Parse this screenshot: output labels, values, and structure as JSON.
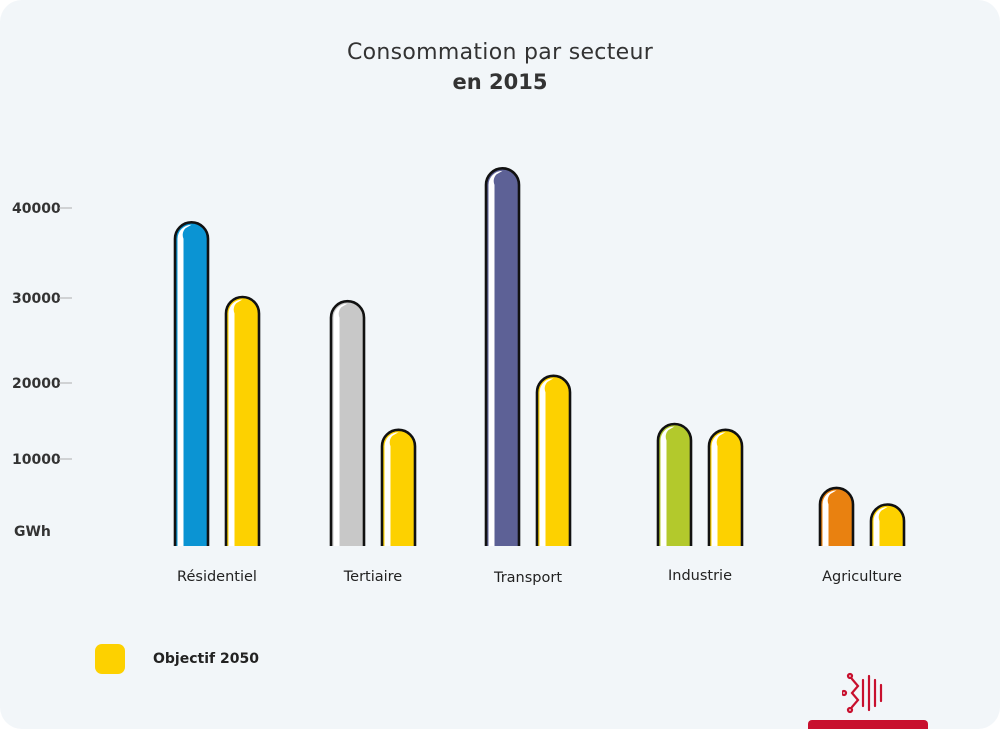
{
  "header": {
    "title_line1": "Consommation par secteur",
    "title_line2": "en 2015"
  },
  "chart_data": {
    "type": "bar",
    "title": "Consommation par secteur en 2015",
    "ylabel": "GWh",
    "yticks": [
      "40000",
      "30000",
      "20000",
      "10000"
    ],
    "ylim": [
      0,
      45000
    ],
    "categories": [
      "Résidentiel",
      "Tertiaire",
      "Transport",
      "Industrie",
      "Agriculture"
    ],
    "series": [
      {
        "values": [
          39000,
          29500,
          45500,
          14700,
          7000
        ],
        "colors": [
          "#0b94d3",
          "#c8c8c8",
          "#5d6196",
          "#b3c92c",
          "#e98110"
        ]
      },
      {
        "name": "Objectif 2050",
        "values": [
          30000,
          14000,
          20500,
          14000,
          5000
        ],
        "color": "#fdd100"
      }
    ],
    "legend": {
      "label": "Objectif 2050",
      "position": "bottom-left"
    },
    "grid": false
  },
  "legend": {
    "label_prefix": "Objectif ",
    "label_year": "2050"
  },
  "logo": {
    "icon": "occitanie-cross-icon",
    "color": "#c8102e"
  }
}
